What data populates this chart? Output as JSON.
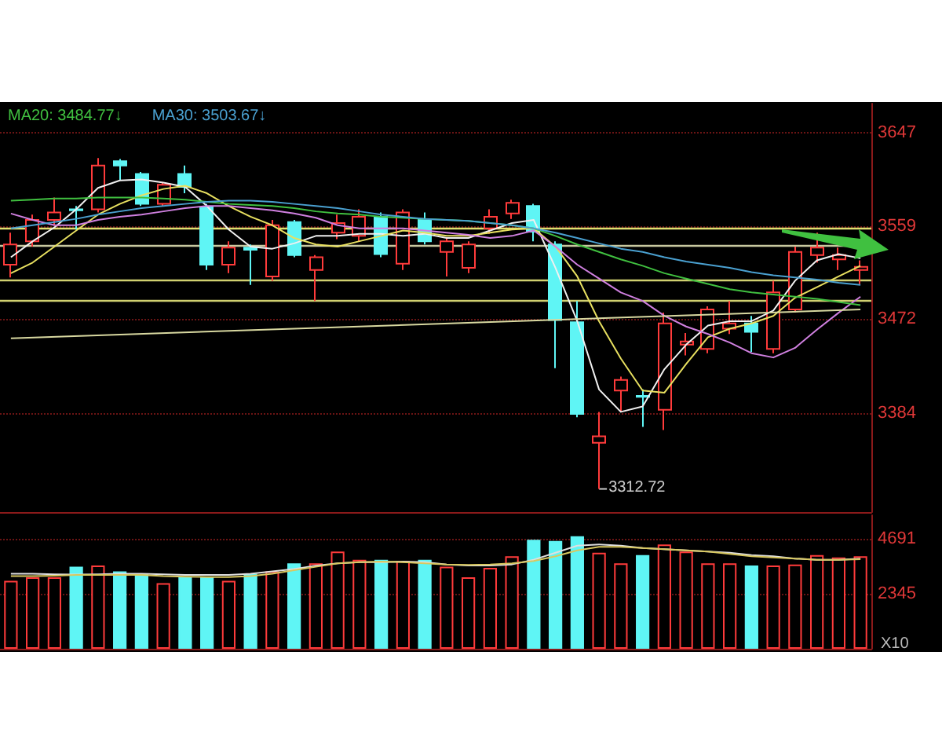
{
  "chart_data": [
    {
      "type": "candlestick",
      "categories": [
        null,
        null,
        null,
        null,
        null,
        null,
        null,
        null,
        null,
        null,
        null,
        null,
        null,
        null,
        null,
        null,
        null,
        null,
        null,
        null,
        null,
        null,
        null,
        null,
        null,
        null,
        null,
        null,
        null,
        null,
        null,
        null,
        null,
        null,
        null,
        null,
        null,
        null,
        null,
        null
      ],
      "ohlc": [
        [
          3523,
          3553,
          3511,
          3542
        ],
        [
          3545,
          3570,
          3540,
          3565
        ],
        [
          3565,
          3586,
          3560,
          3572
        ],
        [
          3575,
          3578,
          3556,
          3574
        ],
        [
          3575,
          3623,
          3572,
          3616
        ],
        [
          3620,
          3622,
          3602,
          3616
        ],
        [
          3608,
          3610,
          3578,
          3580
        ],
        [
          3580,
          3600,
          3578,
          3598
        ],
        [
          3608,
          3616,
          3590,
          3596
        ],
        [
          3577,
          3580,
          3518,
          3523
        ],
        [
          3523,
          3545,
          3515,
          3539
        ],
        [
          3539,
          3542,
          3504,
          3537
        ],
        [
          3512,
          3565,
          3508,
          3560
        ],
        [
          3563,
          3565,
          3530,
          3532
        ],
        [
          3518,
          3532,
          3489,
          3530
        ],
        [
          3553,
          3570,
          3547,
          3562
        ],
        [
          3550,
          3575,
          3545,
          3568
        ],
        [
          3568,
          3572,
          3530,
          3533
        ],
        [
          3524,
          3575,
          3518,
          3572
        ],
        [
          3565,
          3572,
          3542,
          3545
        ],
        [
          3535,
          3548,
          3512,
          3545
        ],
        [
          3520,
          3545,
          3515,
          3542
        ],
        [
          3557,
          3575,
          3552,
          3568
        ],
        [
          3571,
          3584,
          3566,
          3581
        ],
        [
          3578,
          3580,
          3545,
          3554
        ],
        [
          3542,
          3545,
          3426,
          3471
        ],
        [
          3469,
          3489,
          3380,
          3383
        ],
        [
          3356,
          3385,
          3312.72,
          3362
        ],
        [
          3405,
          3418,
          3385,
          3415
        ],
        [
          3400,
          3406,
          3371,
          3399
        ],
        [
          3387,
          3478,
          3368,
          3468
        ],
        [
          3448,
          3459,
          3438,
          3451
        ],
        [
          3444,
          3484,
          3440,
          3481
        ],
        [
          3463,
          3489,
          3458,
          3468
        ],
        [
          3468,
          3475,
          3441,
          3460
        ],
        [
          3444,
          3508,
          3440,
          3497
        ],
        [
          3481,
          3540,
          3478,
          3535
        ],
        [
          3532,
          3553,
          3525,
          3539
        ],
        [
          3528,
          3539,
          3518,
          3532
        ],
        [
          3518,
          3527,
          3504,
          3521
        ]
      ],
      "colors": [
        "#ff3b3b",
        "#ff3b3b",
        "#ff3b3b",
        "#5ff5f5",
        "#ff3b3b",
        "#5ff5f5",
        "#5ff5f5",
        "#ff3b3b",
        "#5ff5f5",
        "#5ff5f5",
        "#ff3b3b",
        "#5ff5f5",
        "#ff3b3b",
        "#5ff5f5",
        "#ff3b3b",
        "#ff3b3b",
        "#ff3b3b",
        "#5ff5f5",
        "#ff3b3b",
        "#5ff5f5",
        "#ff3b3b",
        "#ff3b3b",
        "#ff3b3b",
        "#ff3b3b",
        "#5ff5f5",
        "#5ff5f5",
        "#5ff5f5",
        "#ff3b3b",
        "#ff3b3b",
        "#5ff5f5",
        "#ff3b3b",
        "#ff3b3b",
        "#ff3b3b",
        "#ff3b3b",
        "#5ff5f5",
        "#ff3b3b",
        "#ff3b3b",
        "#ff3b3b",
        "#ff3b3b",
        "#ff3b3b"
      ],
      "series": [
        {
          "type": "line",
          "color": "#f0f0f0",
          "values": [
            3530,
            3545,
            3558,
            3575,
            3595,
            3602,
            3603,
            3600,
            3596,
            3578,
            3556,
            3540,
            3538,
            3543,
            3550,
            3550,
            3552,
            3552,
            3550,
            3552,
            3548,
            3548,
            3555,
            3562,
            3565,
            3520,
            3470,
            3406,
            3385,
            3390,
            3425,
            3448,
            3466,
            3470,
            3470,
            3480,
            3508,
            3527,
            3533,
            3529
          ]
        },
        {
          "type": "line",
          "color": "#e8e060",
          "values": [
            3515,
            3525,
            3540,
            3555,
            3570,
            3580,
            3588,
            3594,
            3597,
            3590,
            3578,
            3568,
            3560,
            3548,
            3542,
            3540,
            3545,
            3550,
            3555,
            3553,
            3550,
            3550,
            3553,
            3556,
            3557,
            3540,
            3512,
            3470,
            3435,
            3405,
            3403,
            3430,
            3455,
            3463,
            3468,
            3475,
            3492,
            3502,
            3512,
            3522
          ]
        },
        {
          "type": "line",
          "color": "#d080e0",
          "values": [
            3571,
            3565,
            3560,
            3560,
            3565,
            3568,
            3570,
            3573,
            3576,
            3578,
            3578,
            3576,
            3574,
            3571,
            3567,
            3560,
            3557,
            3557,
            3557,
            3555,
            3553,
            3551,
            3548,
            3550,
            3555,
            3540,
            3523,
            3510,
            3497,
            3489,
            3475,
            3465,
            3458,
            3450,
            3440,
            3436,
            3445,
            3462,
            3478,
            3493
          ]
        },
        {
          "type": "line",
          "name": "MA20: 3484.77↓",
          "color": "#40c040",
          "values": [
            3583,
            3584,
            3585,
            3585,
            3586,
            3586,
            3586,
            3585,
            3584,
            3582,
            3580,
            3579,
            3578,
            3576,
            3573,
            3571,
            3570,
            3568,
            3567,
            3566,
            3565,
            3564,
            3562,
            3560,
            3557,
            3550,
            3542,
            3535,
            3528,
            3522,
            3515,
            3510,
            3505,
            3500,
            3497,
            3495,
            3493,
            3491,
            3488,
            3485
          ]
        },
        {
          "type": "line",
          "name": "MA30: 3503.67↓",
          "color": "#4aa0d0",
          "values": [
            3557,
            3560,
            3563,
            3566,
            3570,
            3573,
            3576,
            3578,
            3580,
            3582,
            3583,
            3583,
            3582,
            3580,
            3578,
            3576,
            3573,
            3570,
            3568,
            3566,
            3565,
            3564,
            3562,
            3560,
            3557,
            3553,
            3548,
            3543,
            3538,
            3535,
            3530,
            3526,
            3523,
            3520,
            3516,
            3513,
            3511,
            3509,
            3506,
            3504
          ]
        },
        {
          "type": "line",
          "color": "#d8d8a0",
          "values": [
            3454,
            null,
            null,
            null,
            null,
            null,
            null,
            null,
            null,
            null,
            null,
            null,
            null,
            null,
            null,
            null,
            null,
            null,
            null,
            null,
            null,
            null,
            null,
            null,
            null,
            null,
            null,
            null,
            null,
            null,
            null,
            null,
            null,
            null,
            null,
            null,
            null,
            null,
            null,
            3481
          ]
        }
      ],
      "ylim": [
        3291,
        3674
      ],
      "yticks": [
        3384,
        3472,
        3559,
        3647
      ],
      "grid": "y",
      "tick_labels": "y",
      "marker": "none",
      "ref_lines": [
        {
          "axis": "y",
          "value": 3557,
          "color": "#e0e070"
        },
        {
          "axis": "y",
          "value": 3541,
          "color": "#c8c8a0"
        },
        {
          "axis": "y",
          "value": 3508,
          "color": "#d0d070"
        },
        {
          "axis": "y",
          "value": 3489,
          "color": "#d0d070"
        }
      ],
      "legend": "top left",
      "annotations": [
        "3312.72"
      ]
    },
    {
      "type": "bar",
      "categories": [
        null,
        null,
        null,
        null,
        null,
        null,
        null,
        null,
        null,
        null,
        null,
        null,
        null,
        null,
        null,
        null,
        null,
        null,
        null,
        null,
        null,
        null,
        null,
        null,
        null,
        null,
        null,
        null,
        null,
        null,
        null,
        null,
        null,
        null,
        null,
        null,
        null,
        null,
        null,
        null
      ],
      "values": [
        2900,
        3050,
        3050,
        3500,
        3550,
        3300,
        3200,
        2800,
        3050,
        3050,
        2900,
        3200,
        3300,
        3650,
        3650,
        4150,
        3800,
        3800,
        3750,
        3800,
        3500,
        3050,
        3450,
        3950,
        4650,
        4600,
        4800,
        4100,
        3650,
        4000,
        4450,
        4150,
        3650,
        3650,
        3550,
        3550,
        3600,
        4000,
        3900,
        3950
      ],
      "colors": [
        "#ff3b3b",
        "#ff3b3b",
        "#ff3b3b",
        "#5ff5f5",
        "#ff3b3b",
        "#5ff5f5",
        "#5ff5f5",
        "#ff3b3b",
        "#5ff5f5",
        "#5ff5f5",
        "#ff3b3b",
        "#5ff5f5",
        "#ff3b3b",
        "#5ff5f5",
        "#ff3b3b",
        "#ff3b3b",
        "#ff3b3b",
        "#5ff5f5",
        "#ff3b3b",
        "#5ff5f5",
        "#ff3b3b",
        "#ff3b3b",
        "#ff3b3b",
        "#ff3b3b",
        "#5ff5f5",
        "#5ff5f5",
        "#5ff5f5",
        "#ff3b3b",
        "#ff3b3b",
        "#5ff5f5",
        "#ff3b3b",
        "#ff3b3b",
        "#ff3b3b",
        "#ff3b3b",
        "#5ff5f5",
        "#ff3b3b",
        "#ff3b3b",
        "#ff3b3b",
        "#ff3b3b",
        "#ff3b3b"
      ],
      "series": [
        {
          "type": "line",
          "color": "#e0e0e0",
          "values": [
            3200,
            3200,
            3180,
            3170,
            3180,
            3200,
            3200,
            3180,
            3150,
            3150,
            3150,
            3200,
            3300,
            3400,
            3550,
            3650,
            3700,
            3700,
            3720,
            3700,
            3600,
            3550,
            3550,
            3600,
            3800,
            4100,
            4400,
            4450,
            4400,
            4300,
            4250,
            4200,
            4150,
            4100,
            4000,
            3950,
            3850,
            3800,
            3800,
            3850
          ]
        },
        {
          "type": "line",
          "color": "#d8c860",
          "values": [
            3100,
            3100,
            3120,
            3150,
            3150,
            3150,
            3150,
            3100,
            3080,
            3060,
            3060,
            3100,
            3200,
            3350,
            3500,
            3650,
            3700,
            3720,
            3700,
            3650,
            3600,
            3580,
            3600,
            3650,
            3750,
            3950,
            4200,
            4350,
            4350,
            4300,
            4250,
            4200,
            4150,
            4050,
            3950,
            3900,
            3850,
            3800,
            3800,
            3820
          ]
        }
      ],
      "ylim": [
        0,
        5700
      ],
      "yticks": [
        2345,
        4691
      ],
      "ylabel": "X10",
      "grid": "y",
      "tick_labels": "y",
      "marker": "none"
    }
  ]
}
